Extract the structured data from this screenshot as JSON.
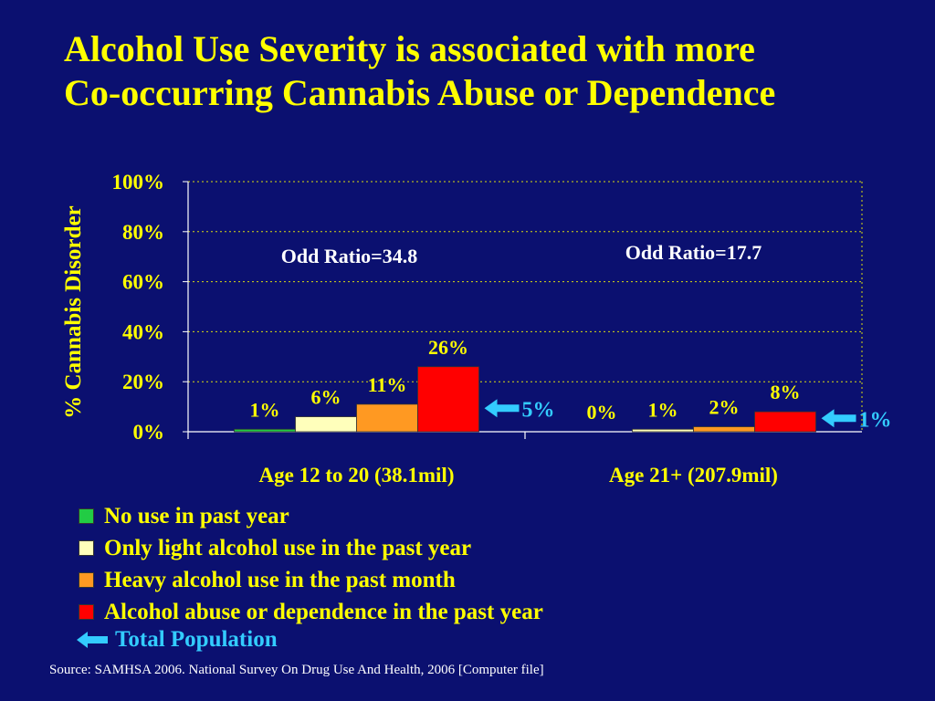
{
  "slide": {
    "title_line1": "Alcohol Use Severity is associated with more",
    "title_line2": "Co-occurring Cannabis Abuse or Dependence",
    "source": "Source:  SAMHSA 2006. National Survey On Drug Use And Health, 2006 [Computer file]",
    "total_population_label": "Total Population"
  },
  "colors": {
    "background": "#0b1070",
    "title": "#ffff00",
    "axis_text": "#ffff00",
    "annotation": "#ffffff",
    "total_population": "#33ccff",
    "series": [
      "#22cc44",
      "#ffffbb",
      "#ff9922",
      "#ff0000"
    ]
  },
  "chart_data": {
    "type": "bar",
    "ylabel": "% Cannabis Disorder",
    "ylim": [
      0,
      100
    ],
    "yticks": [
      "0%",
      "20%",
      "40%",
      "60%",
      "80%",
      "100%"
    ],
    "grid": true,
    "legend_position": "bottom-left",
    "categories": [
      "Age 12 to 20 (38.1mil)",
      "Age 21+ (207.9mil)"
    ],
    "series": [
      {
        "name": "No use in past year",
        "values": [
          1,
          0
        ],
        "labels": [
          "1%",
          "0%"
        ]
      },
      {
        "name": "Only light alcohol use in the past year",
        "values": [
          6,
          1
        ],
        "labels": [
          "6%",
          "1%"
        ]
      },
      {
        "name": "Heavy alcohol use in the past month",
        "values": [
          11,
          2
        ],
        "labels": [
          "11%",
          "2%"
        ]
      },
      {
        "name": "Alcohol abuse or dependence in the past year",
        "values": [
          26,
          8
        ],
        "labels": [
          "26%",
          "8%"
        ]
      }
    ],
    "total_population": {
      "values": [
        5,
        1
      ],
      "labels": [
        "5%",
        "1%"
      ]
    },
    "annotations": [
      "Odd Ratio=34.8",
      "Odd Ratio=17.7"
    ]
  }
}
